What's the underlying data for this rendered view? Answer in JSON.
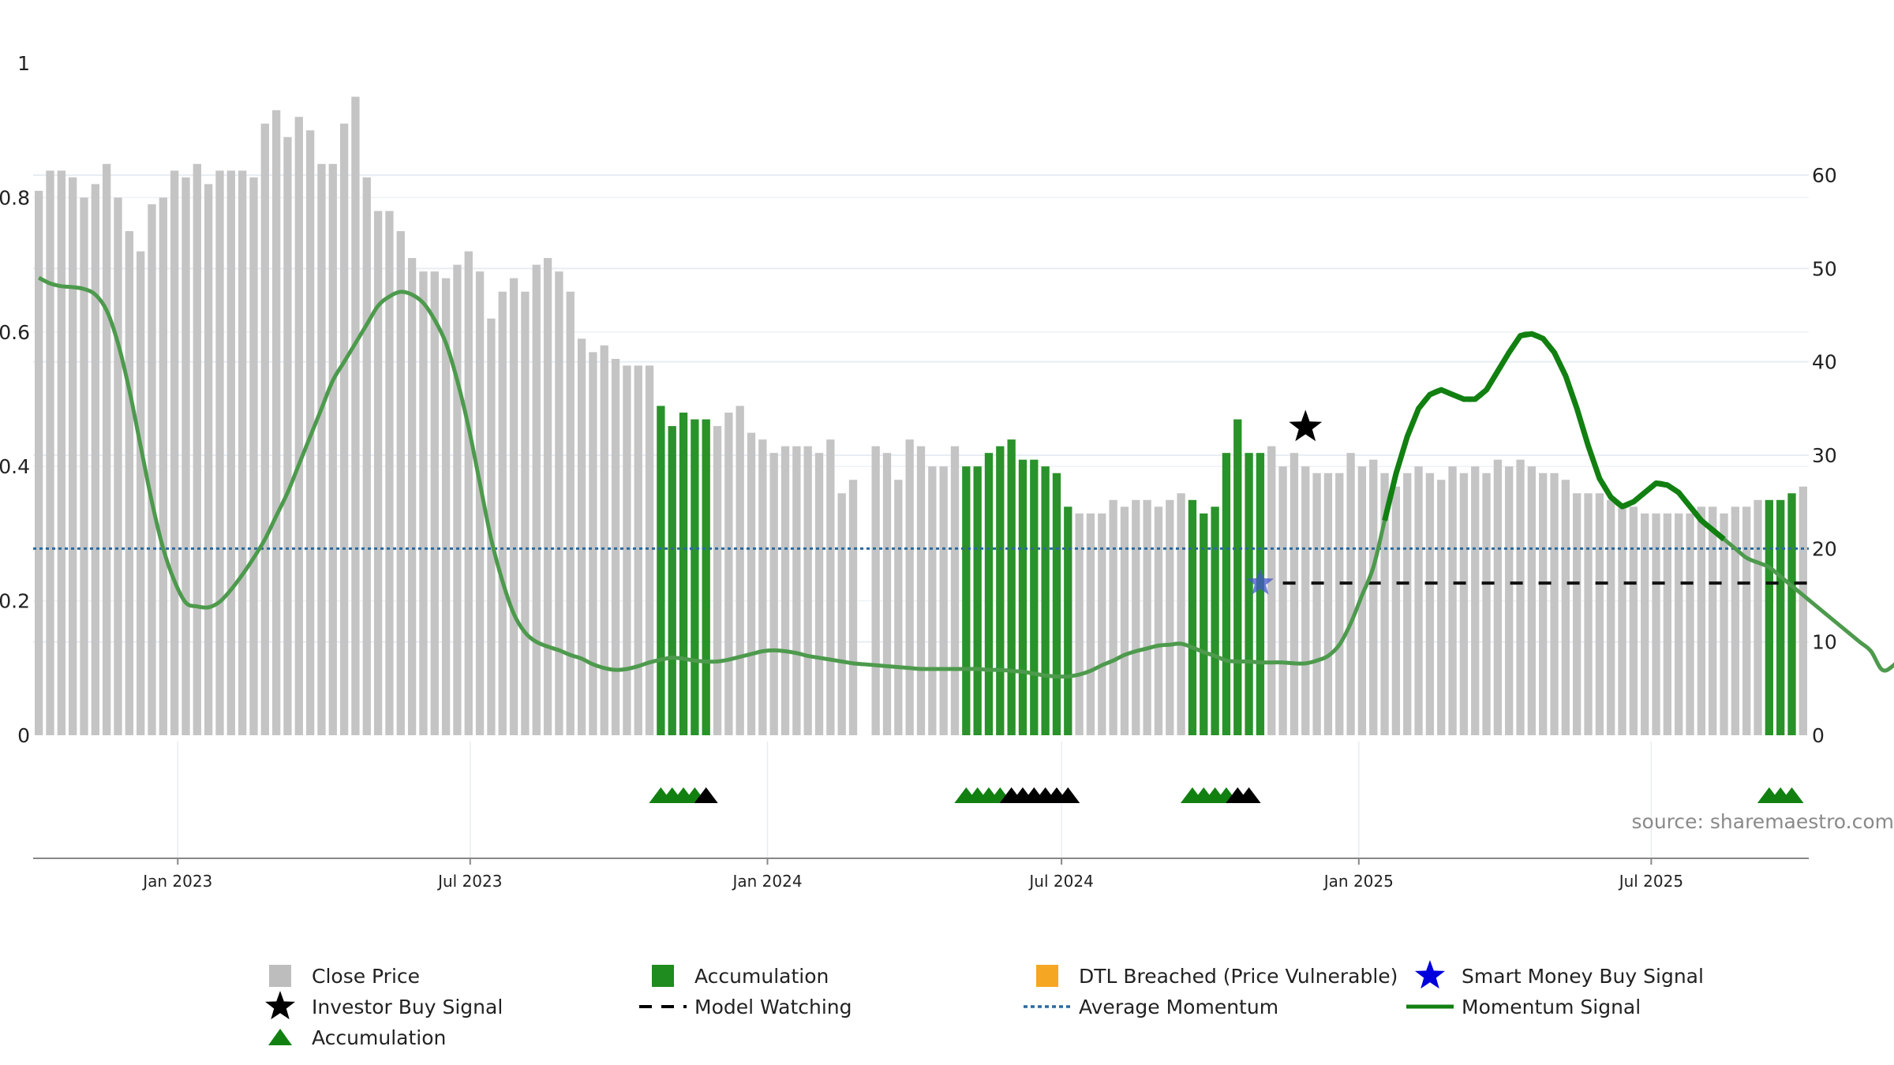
{
  "chart_data": {
    "type": "bar",
    "x_start": "2022-10-07",
    "x_step_days": 7,
    "close_price": [
      0.81,
      0.84,
      0.84,
      0.83,
      0.8,
      0.82,
      0.85,
      0.8,
      0.75,
      0.72,
      0.79,
      0.8,
      0.84,
      0.83,
      0.85,
      0.82,
      0.84,
      0.84,
      0.84,
      0.83,
      0.91,
      0.93,
      0.89,
      0.92,
      0.9,
      0.85,
      0.85,
      0.91,
      0.95,
      0.83,
      0.78,
      0.78,
      0.75,
      0.71,
      0.69,
      0.69,
      0.68,
      0.7,
      0.72,
      0.69,
      0.62,
      0.66,
      0.68,
      0.66,
      0.7,
      0.71,
      0.69,
      0.66,
      0.59,
      0.57,
      0.58,
      0.56,
      0.55,
      0.55,
      0.55,
      0.49,
      0.46,
      0.48,
      0.47,
      0.47,
      0.46,
      0.48,
      0.49,
      0.45,
      0.44,
      0.42,
      0.43,
      0.43,
      0.43,
      0.42,
      0.44,
      0.36,
      0.38,
      null,
      0.43,
      0.42,
      0.38,
      0.44,
      0.43,
      0.4,
      0.4,
      0.43,
      0.4,
      0.4,
      0.42,
      0.43,
      0.44,
      0.41,
      0.41,
      0.4,
      0.39,
      0.34,
      0.33,
      0.33,
      0.33,
      0.35,
      0.34,
      0.35,
      0.35,
      0.34,
      0.35,
      0.36,
      0.35,
      0.33,
      0.34,
      0.42,
      0.47,
      0.42,
      0.42,
      0.43,
      0.4,
      0.42,
      0.4,
      0.39,
      0.39,
      0.39,
      0.42,
      0.4,
      0.41,
      0.39,
      0.37,
      0.39,
      0.4,
      0.39,
      0.38,
      0.4,
      0.39,
      0.4,
      0.39,
      0.41,
      0.4,
      0.41,
      0.4,
      0.39,
      0.39,
      0.38,
      0.36,
      0.36,
      0.36,
      0.35,
      0.34,
      0.34,
      0.33,
      0.33,
      0.33,
      0.33,
      0.33,
      0.34,
      0.34,
      0.33,
      0.34,
      0.34,
      0.35,
      0.35,
      0.35,
      0.36,
      0.37
    ],
    "accumulation_bar_indices": [
      55,
      56,
      57,
      58,
      59,
      82,
      83,
      84,
      85,
      86,
      87,
      88,
      89,
      90,
      91,
      102,
      103,
      104,
      105,
      106,
      107,
      108,
      153,
      154,
      155
    ],
    "momentum_signal": [
      49,
      48.4,
      48.1,
      48,
      47.8,
      47.2,
      45.5,
      42,
      37,
      31,
      25,
      20,
      16.5,
      14.2,
      13.8,
      13.7,
      14.3,
      15.6,
      17.2,
      19,
      21,
      23.5,
      26,
      29,
      32,
      35,
      38,
      40,
      42,
      44,
      46,
      47,
      47.5,
      47.2,
      46.3,
      44.5,
      42,
      38,
      33,
      27,
      21,
      16.5,
      13,
      11,
      10,
      9.5,
      9.1,
      8.6,
      8.2,
      7.6,
      7.2,
      7,
      7.1,
      7.4,
      7.8,
      8.1,
      8.3,
      8.2,
      8,
      7.9,
      7.9,
      8.1,
      8.4,
      8.7,
      9,
      9.1,
      9,
      8.8,
      8.5,
      8.3,
      8.1,
      7.9,
      7.7,
      7.6,
      7.5,
      7.4,
      7.3,
      7.2,
      7.1,
      7.1,
      7.1,
      7.1,
      7.1,
      7.1,
      7.0,
      7.0,
      6.9,
      6.8,
      6.6,
      6.4,
      6.3,
      6.3,
      6.5,
      6.9,
      7.5,
      8.0,
      8.6,
      9.0,
      9.3,
      9.6,
      9.7,
      9.8,
      9.4,
      8.9,
      8.5,
      8.0,
      7.9,
      7.9,
      7.8,
      7.8,
      7.8,
      7.7,
      7.7,
      8.0,
      8.5,
      9.7,
      12,
      15,
      18,
      23,
      28,
      32,
      35,
      36.5,
      37,
      36.5,
      36,
      36,
      37,
      39,
      41,
      42.8,
      43,
      42.5,
      41,
      38.5,
      35,
      31,
      27.5,
      25.5,
      24.5,
      25,
      26,
      27,
      26.8,
      26,
      24.5,
      23,
      22,
      21,
      20,
      19,
      18.5,
      18,
      17,
      16,
      15,
      14,
      13,
      12,
      11,
      10,
      9,
      7,
      7.5,
      9,
      10.5
    ],
    "average_momentum": 20,
    "model_watching_level": 16.3,
    "model_watching_start_index": 110,
    "investor_buy_signal": {
      "index": 112,
      "value": 33
    },
    "smart_money_buy_signal": {
      "index": 108,
      "value": 16.3
    },
    "triangle_markers": [
      {
        "index": 55,
        "kind": "accumulation"
      },
      {
        "index": 56,
        "kind": "accumulation"
      },
      {
        "index": 57,
        "kind": "accumulation"
      },
      {
        "index": 58,
        "kind": "accumulation"
      },
      {
        "index": 59,
        "kind": "other"
      },
      {
        "index": 82,
        "kind": "accumulation"
      },
      {
        "index": 83,
        "kind": "accumulation"
      },
      {
        "index": 84,
        "kind": "accumulation"
      },
      {
        "index": 85,
        "kind": "accumulation"
      },
      {
        "index": 86,
        "kind": "other"
      },
      {
        "index": 87,
        "kind": "other"
      },
      {
        "index": 88,
        "kind": "other"
      },
      {
        "index": 89,
        "kind": "other"
      },
      {
        "index": 90,
        "kind": "other"
      },
      {
        "index": 91,
        "kind": "other"
      },
      {
        "index": 102,
        "kind": "accumulation"
      },
      {
        "index": 103,
        "kind": "accumulation"
      },
      {
        "index": 104,
        "kind": "accumulation"
      },
      {
        "index": 105,
        "kind": "accumulation"
      },
      {
        "index": 106,
        "kind": "other"
      },
      {
        "index": 107,
        "kind": "other"
      },
      {
        "index": 153,
        "kind": "accumulation"
      },
      {
        "index": 154,
        "kind": "accumulation"
      },
      {
        "index": 155,
        "kind": "accumulation"
      }
    ],
    "left_axis": {
      "ylim": [
        0,
        1
      ],
      "ticks": [
        "0",
        "0.2",
        "0.4",
        "0.6",
        "0.8",
        "1"
      ],
      "tick_values": [
        0,
        0.2,
        0.4,
        0.6,
        0.8,
        1
      ]
    },
    "right_axis": {
      "ylim": [
        0,
        72
      ],
      "ticks": [
        "0",
        "10",
        "20",
        "30",
        "40",
        "50",
        "60"
      ],
      "tick_values": [
        0,
        10,
        20,
        30,
        40,
        50,
        60
      ]
    },
    "x_ticks": [
      {
        "label": "Jan 2023",
        "date": "2023-01-01"
      },
      {
        "label": "Jul 2023",
        "date": "2023-07-01"
      },
      {
        "label": "Jan 2024",
        "date": "2024-01-01"
      },
      {
        "label": "Jul 2024",
        "date": "2024-07-01"
      },
      {
        "label": "Jan 2025",
        "date": "2025-01-01"
      },
      {
        "label": "Jul 2025",
        "date": "2025-07-01"
      }
    ],
    "grid": true,
    "legend_position": "bottom",
    "source": "source: sharemaestro.com"
  },
  "legend": [
    {
      "label": "Close Price",
      "symbol": "square",
      "color": "#bdbdbd"
    },
    {
      "label": "Accumulation",
      "symbol": "square",
      "color": "#1e8c1e"
    },
    {
      "label": "DTL Breached (Price Vulnerable)",
      "symbol": "square",
      "color": "#f5a623"
    },
    {
      "label": "Smart Money Buy Signal",
      "symbol": "star",
      "color": "#0000dd"
    },
    {
      "label": "Investor Buy Signal",
      "symbol": "star",
      "color": "#000000"
    },
    {
      "label": "Model Watching",
      "symbol": "dash",
      "color": "#000000"
    },
    {
      "label": "Average Momentum",
      "symbol": "dotted",
      "color": "#2b6a9e"
    },
    {
      "label": "Momentum Signal",
      "symbol": "line",
      "color": "#118011"
    },
    {
      "label": "Accumulation",
      "symbol": "triangle",
      "color": "#118011"
    }
  ],
  "colors": {
    "close_price": "#c4c4c4",
    "accumulation": "#2a922a",
    "momentum": "#118011",
    "momentum_faded": "#4d9a4d",
    "average_momentum": "#2b6a9e",
    "grid": "#e8edf3",
    "axis": "#888888"
  }
}
